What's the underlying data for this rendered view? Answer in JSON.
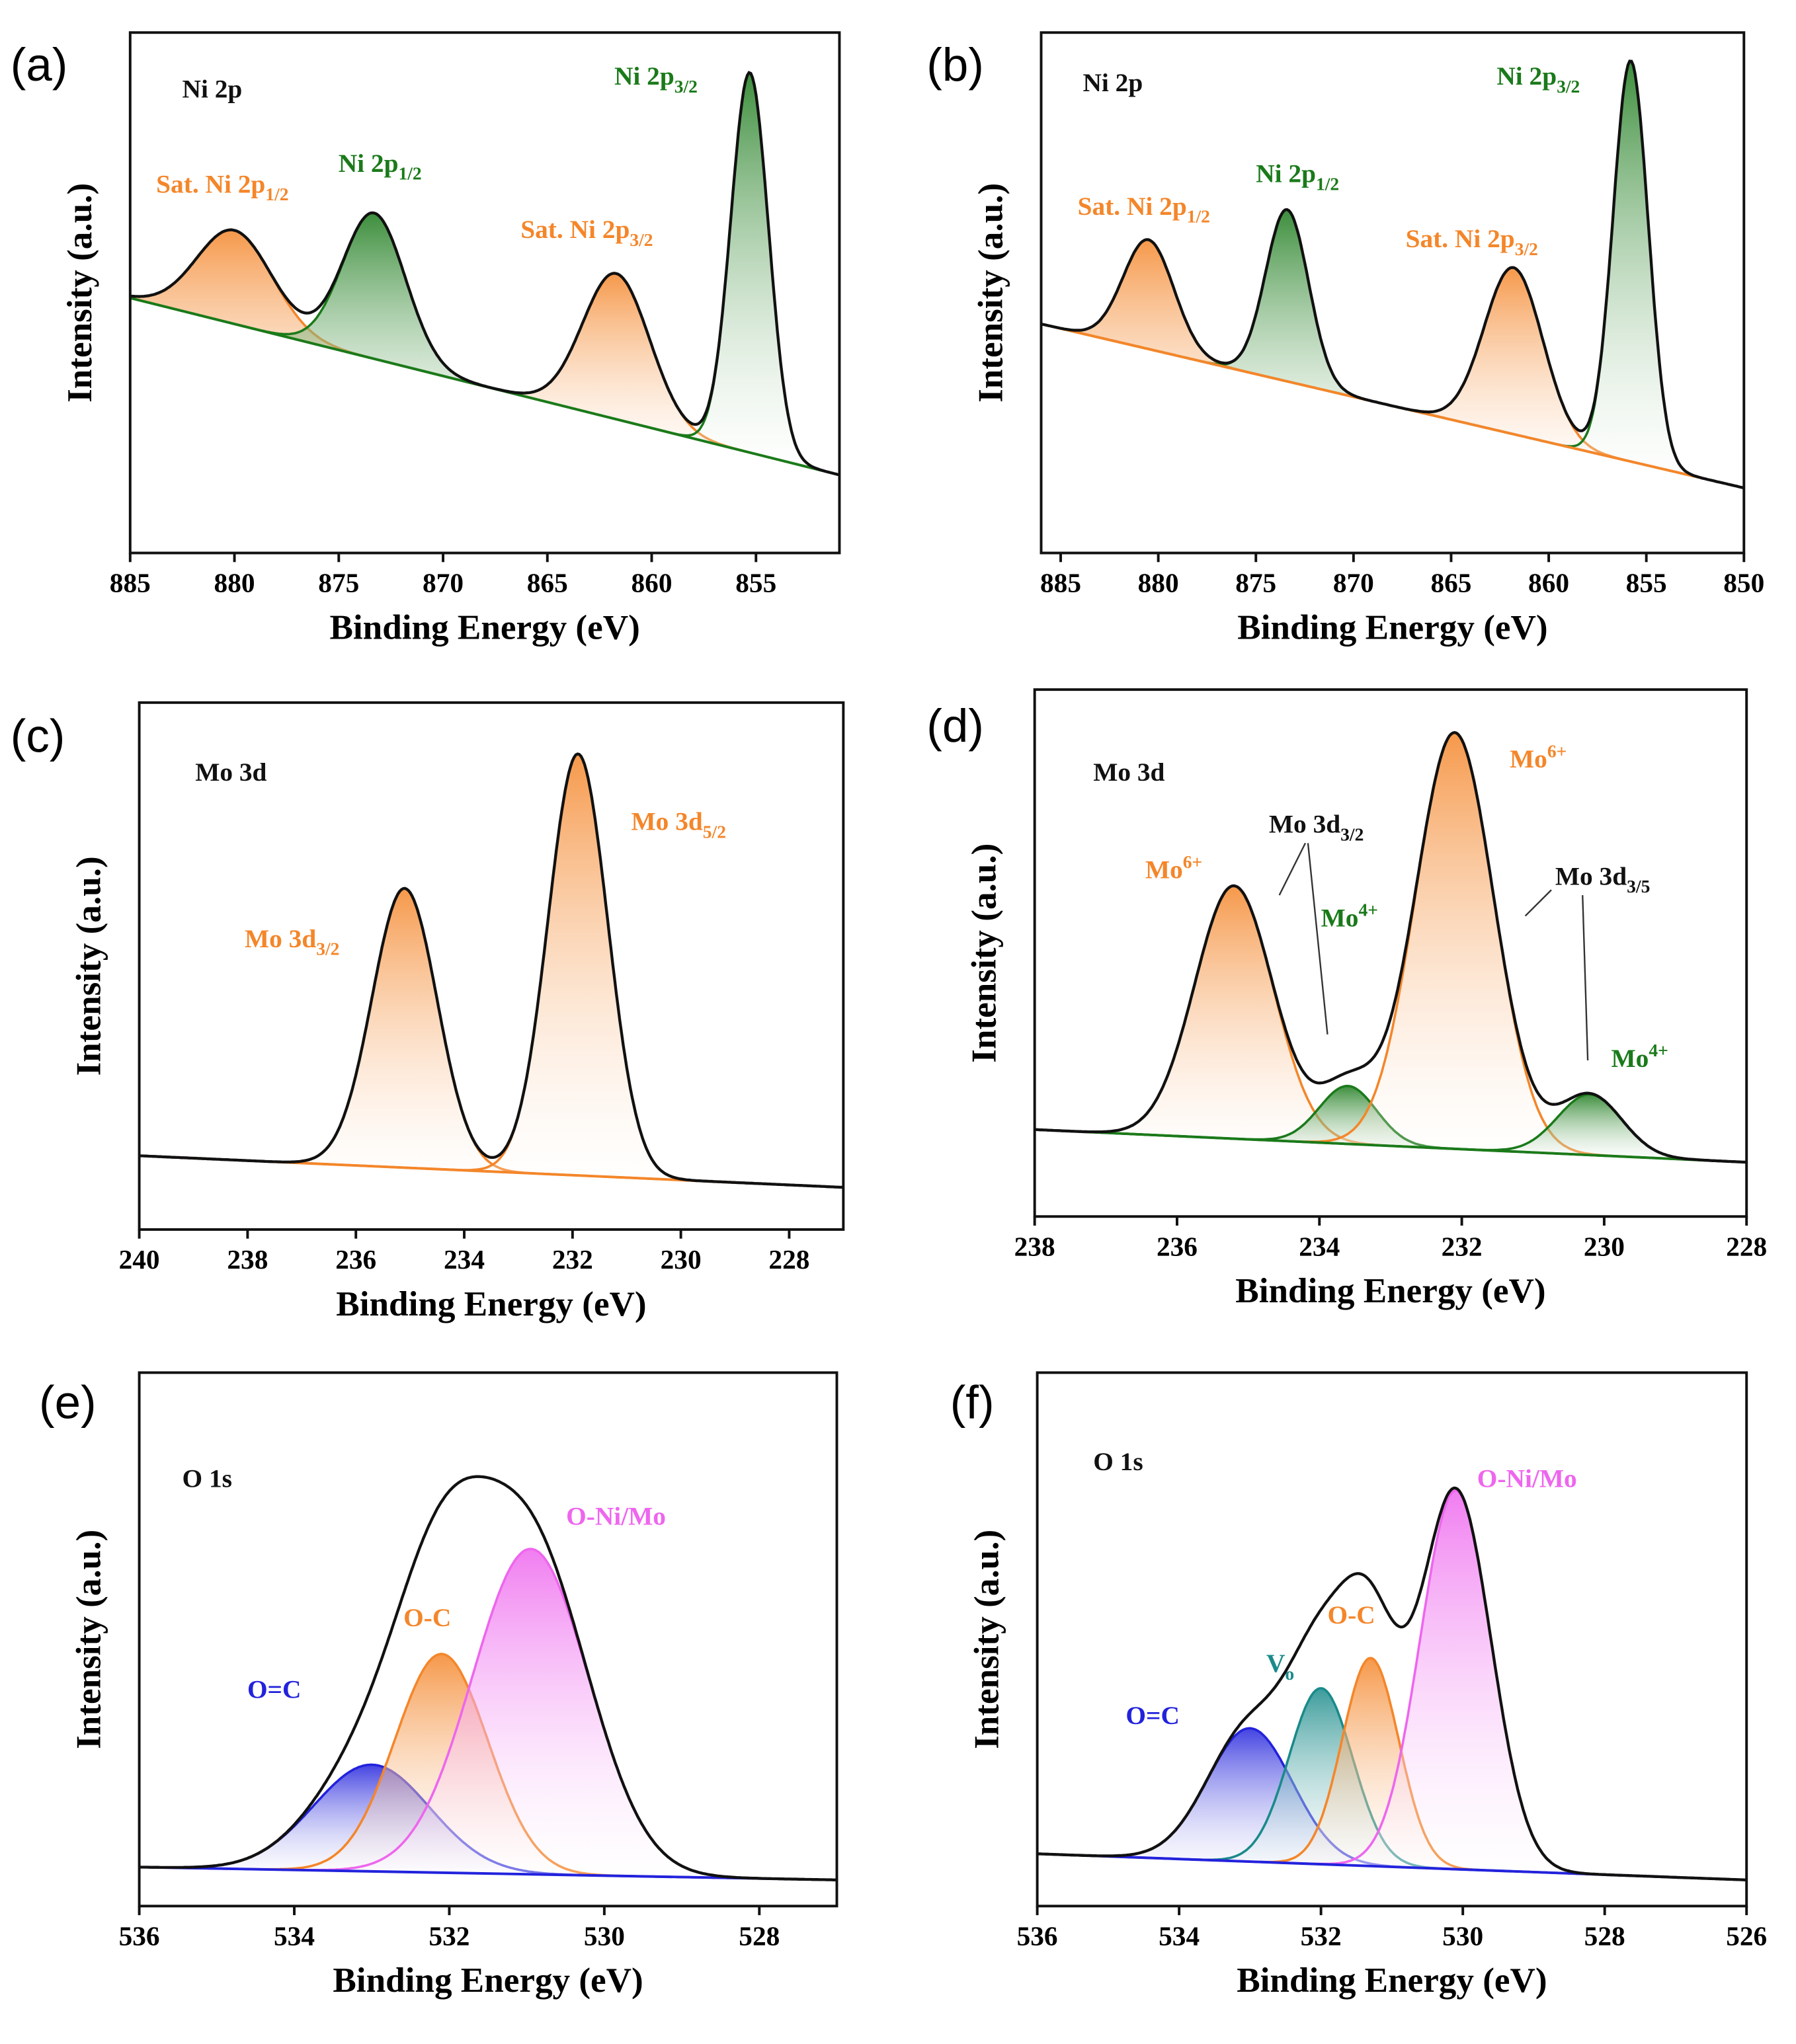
{
  "chart_data": [
    {
      "type": "line",
      "panel": "(a)",
      "xlabel": "Binding Energy (eV)",
      "ylabel": "Intensity (a.u.)",
      "xlim": [
        885,
        851
      ],
      "xticks": [
        885,
        880,
        875,
        870,
        865,
        860,
        855
      ],
      "ylim": [
        0,
        100
      ],
      "background": [
        49,
        15
      ],
      "background_color": "#1a7a1a",
      "peaks": [
        {
          "center": 880,
          "height": 18,
          "width": 1.8,
          "color": "#f4862a"
        },
        {
          "center": 873.3,
          "height": 28,
          "width": 1.5,
          "color": "#1a7a1a"
        },
        {
          "center": 861.7,
          "height": 28,
          "width": 1.6,
          "color": "#f4862a"
        },
        {
          "center": 855.3,
          "height": 73,
          "width": 0.9,
          "color": "#1a7a1a"
        }
      ],
      "labels": [
        {
          "text": "Ni 2p",
          "color": "#111111"
        },
        {
          "text": "Sat. Ni 2p",
          "sub": "1/2",
          "color": "#f4862a"
        },
        {
          "text": "Ni 2p",
          "sub": "1/2",
          "color": "#1a7a1a"
        },
        {
          "text": "Sat. Ni 2p",
          "sub": "3/2",
          "color": "#f4862a"
        },
        {
          "text": "Ni 2p",
          "sub": "3/2",
          "color": "#1a7a1a"
        }
      ]
    },
    {
      "type": "line",
      "panel": "(b)",
      "xlabel": "Binding Energy (eV)",
      "ylabel": "Intensity (a.u.)",
      "xlim": [
        886,
        850
      ],
      "xticks": [
        885,
        880,
        875,
        870,
        865,
        860,
        855,
        850
      ],
      "ylim": [
        0,
        100
      ],
      "background": [
        44,
        12.5
      ],
      "background_color": "#f4862a",
      "peaks": [
        {
          "center": 880.5,
          "height": 21,
          "width": 1.3,
          "color": "#f4862a"
        },
        {
          "center": 873.4,
          "height": 33,
          "width": 1.1,
          "color": "#1a7a1a"
        },
        {
          "center": 861.8,
          "height": 32,
          "width": 1.5,
          "color": "#f4862a"
        },
        {
          "center": 855.8,
          "height": 77,
          "width": 0.9,
          "color": "#1a7a1a"
        }
      ],
      "labels": [
        {
          "text": "Ni 2p",
          "color": "#111111"
        },
        {
          "text": "Sat. Ni 2p",
          "sub": "1/2",
          "color": "#f4862a"
        },
        {
          "text": "Ni 2p",
          "sub": "1/2",
          "color": "#1a7a1a"
        },
        {
          "text": "Sat. Ni 2p",
          "sub": "3/2",
          "color": "#f4862a"
        },
        {
          "text": "Ni 2p",
          "sub": "3/2",
          "color": "#1a7a1a"
        }
      ]
    },
    {
      "type": "line",
      "panel": "(c)",
      "xlabel": "Binding Energy (eV)",
      "ylabel": "Intensity (a.u.)",
      "xlim": [
        240,
        227
      ],
      "xticks": [
        240,
        238,
        236,
        234,
        232,
        230,
        228
      ],
      "ylim": [
        0,
        100
      ],
      "background": [
        14,
        8
      ],
      "background_color": "#f4862a",
      "peaks": [
        {
          "center": 235.1,
          "height": 53,
          "width": 0.6,
          "color": "#f4862a"
        },
        {
          "center": 231.9,
          "height": 80,
          "width": 0.55,
          "color": "#f4862a"
        }
      ],
      "labels": [
        {
          "text": "Mo 3d",
          "color": "#111111"
        },
        {
          "text": "Mo 3d",
          "sub": "3/2",
          "color": "#f4862a"
        },
        {
          "text": "Mo 3d",
          "sub": "5/2",
          "color": "#f4862a"
        }
      ]
    },
    {
      "type": "line",
      "panel": "(d)",
      "xlabel": "Binding Energy (eV)",
      "ylabel": "Intensity (a.u.)",
      "xlim": [
        238,
        228
      ],
      "xticks": [
        238,
        236,
        234,
        232,
        230,
        228
      ],
      "ylim": [
        0,
        100
      ],
      "background": [
        16.5,
        10.3
      ],
      "background_color": "#1a7a1a",
      "peaks": [
        {
          "center": 235.2,
          "height": 48,
          "width": 0.55,
          "color": "#f4862a"
        },
        {
          "center": 233.6,
          "height": 11,
          "width": 0.4,
          "color": "#1a7a1a"
        },
        {
          "center": 232.1,
          "height": 79,
          "width": 0.55,
          "color": "#f4862a"
        },
        {
          "center": 230.2,
          "height": 11.5,
          "width": 0.45,
          "color": "#1a7a1a"
        }
      ],
      "labels": [
        {
          "text": "Mo 3d",
          "color": "#111111"
        },
        {
          "text": "Mo",
          "sup": "6+",
          "color": "#f4862a"
        },
        {
          "text": "Mo 3d",
          "sub": "3/2",
          "color": "#111111"
        },
        {
          "text": "Mo",
          "sup": "4+",
          "color": "#1a7a1a"
        },
        {
          "text": "Mo",
          "sup": "6+",
          "color": "#f4862a"
        },
        {
          "text": "Mo 3d",
          "sub": "3/5",
          "color": "#111111"
        },
        {
          "text": "Mo",
          "sup": "4+",
          "color": "#1a7a1a"
        }
      ]
    },
    {
      "type": "line",
      "panel": "(e)",
      "xlabel": "Binding Energy (eV)",
      "ylabel": "Intensity (a.u.)",
      "xlim": [
        536,
        527
      ],
      "xticks": [
        536,
        534,
        532,
        530,
        528
      ],
      "ylim": [
        0,
        100
      ],
      "background": [
        7.3,
        4.9
      ],
      "background_color": "#2222dd",
      "peaks": [
        {
          "center": 533,
          "height": 20,
          "width": 0.75,
          "color": "#2222dd"
        },
        {
          "center": 532.1,
          "height": 41,
          "width": 0.6,
          "color": "#f4862a"
        },
        {
          "center": 530.95,
          "height": 61,
          "width": 0.75,
          "color": "#ee66ee"
        }
      ],
      "labels": [
        {
          "text": "O 1s",
          "color": "#111111"
        },
        {
          "text": "O=C",
          "color": "#2222dd"
        },
        {
          "text": "O-C",
          "color": "#f4862a"
        },
        {
          "text": "O-Ni/Mo",
          "color": "#ee66ee"
        }
      ]
    },
    {
      "type": "line",
      "panel": "(f)",
      "xlabel": "Binding Energy (eV)",
      "ylabel": "Intensity (a.u.)",
      "xlim": [
        536,
        526
      ],
      "xticks": [
        536,
        534,
        532,
        530,
        528,
        526
      ],
      "ylim": [
        0,
        100
      ],
      "background": [
        9.8,
        4.9
      ],
      "background_color": "#2222dd",
      "peaks": [
        {
          "center": 533,
          "height": 25,
          "width": 0.6,
          "color": "#2222dd"
        },
        {
          "center": 532,
          "height": 33,
          "width": 0.45,
          "color": "#1a8a8a"
        },
        {
          "center": 531.3,
          "height": 39,
          "width": 0.4,
          "color": "#f4862a"
        },
        {
          "center": 530.1,
          "height": 71,
          "width": 0.5,
          "color": "#ee66ee"
        }
      ],
      "labels": [
        {
          "text": "O 1s",
          "color": "#111111"
        },
        {
          "text": "O=C",
          "color": "#2222dd"
        },
        {
          "text": "V",
          "sub": "o",
          "color": "#1a8a8a"
        },
        {
          "text": "O-C",
          "color": "#f4862a"
        },
        {
          "text": "O-Ni/Mo",
          "color": "#ee66ee"
        }
      ]
    }
  ]
}
